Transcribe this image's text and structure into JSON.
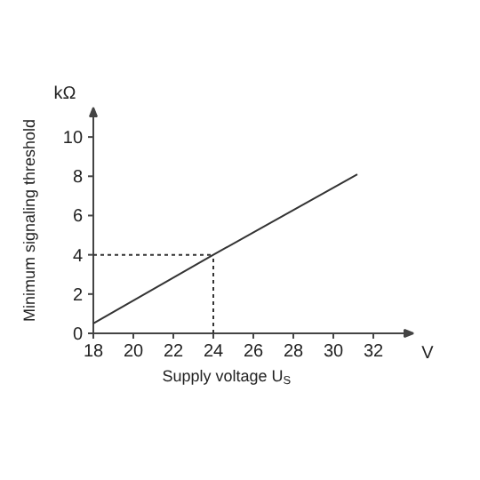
{
  "chart_data": {
    "type": "line",
    "xlabel": "Supply voltage U$_{S}$",
    "ylabel": "Minimum signaling threshold",
    "x": [
      18,
      24,
      31.2
    ],
    "series": [
      {
        "color": "#333333",
        "values": [
          0.5,
          4,
          8.1
        ]
      }
    ],
    "xlim": [
      18,
      34
    ],
    "ylim": [
      0,
      11.5
    ],
    "xticks": [
      18,
      20,
      22,
      24,
      26,
      28,
      30,
      32
    ],
    "yticks": [
      0,
      2,
      4,
      6,
      8,
      10
    ],
    "ref_lines": [
      {
        "axis": "x",
        "value": 24,
        "line_style": "dotted",
        "color": "#333333"
      },
      {
        "axis": "y",
        "value": 4,
        "line_style": "dotted",
        "color": "#333333"
      }
    ],
    "annotations": [
      "V",
      "kΩ"
    ],
    "grid": false,
    "marker": "none",
    "line_style": "solid"
  }
}
